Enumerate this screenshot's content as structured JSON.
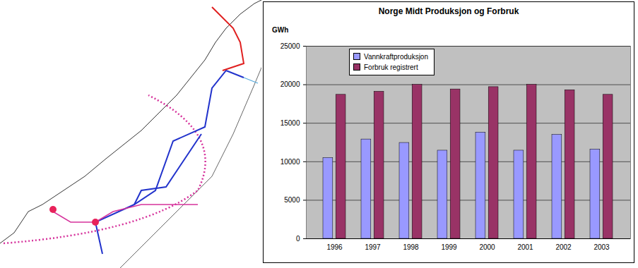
{
  "chart_data": {
    "type": "bar",
    "title": "Norge Midt Produksjon og Forbruk",
    "y_label": "GWh",
    "categories": [
      "1996",
      "1997",
      "1998",
      "1999",
      "2000",
      "2001",
      "2002",
      "2003"
    ],
    "series": [
      {
        "name": "Vannkraftproduksjon",
        "color": "#9999ff",
        "values": [
          10500,
          12900,
          12450,
          11450,
          13800,
          11450,
          13500,
          11600
        ]
      },
      {
        "name": "Forbruk registrert",
        "color": "#993366",
        "values": [
          18700,
          19100,
          20000,
          19400,
          19700,
          20000,
          19300,
          18700
        ]
      }
    ],
    "ylim": [
      0,
      25000
    ],
    "yticks": [
      0,
      5000,
      10000,
      15000,
      20000,
      25000
    ],
    "grid": true,
    "legend": "top-left"
  }
}
